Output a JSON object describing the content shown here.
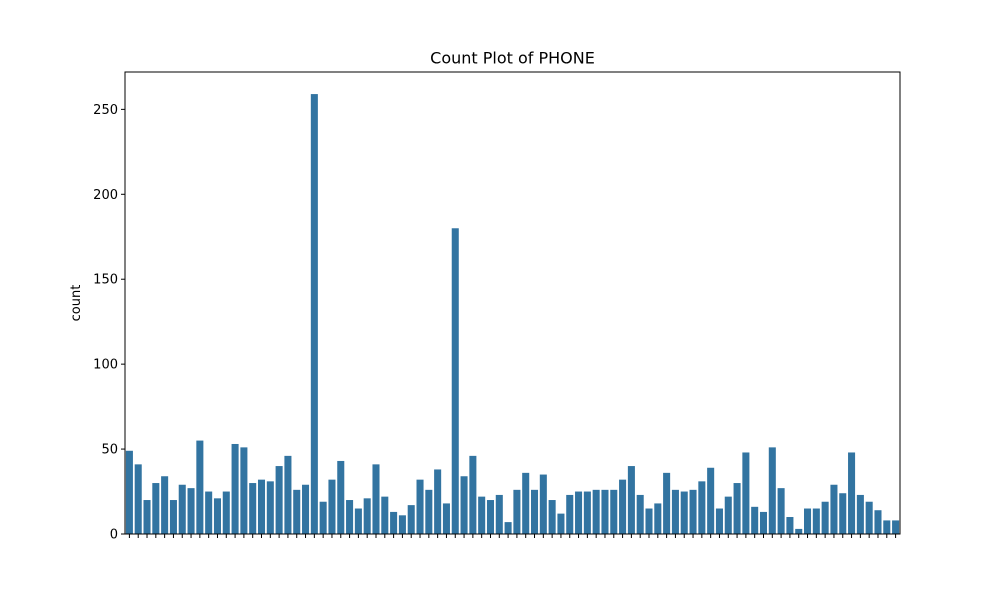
{
  "chart_data": {
    "type": "bar",
    "title": "Count Plot of PHONE",
    "xlabel": "",
    "ylabel": "count",
    "ylim": [
      0,
      272
    ],
    "yticks": [
      0,
      50,
      100,
      150,
      200,
      250
    ],
    "bar_color": "#3274a1",
    "grid": false,
    "x_tick_labels_rotated_degrees": 45,
    "x_tick_labels_legible": false,
    "values": [
      49,
      41,
      20,
      30,
      34,
      20,
      29,
      27,
      55,
      25,
      21,
      25,
      53,
      51,
      30,
      32,
      31,
      40,
      46,
      26,
      29,
      259,
      19,
      32,
      43,
      20,
      15,
      21,
      41,
      22,
      13,
      11,
      17,
      32,
      26,
      38,
      18,
      180,
      34,
      46,
      22,
      20,
      23,
      7,
      26,
      36,
      26,
      35,
      20,
      12,
      23,
      25,
      25,
      26,
      26,
      26,
      32,
      40,
      23,
      15,
      18,
      36,
      26,
      25,
      26,
      31,
      39,
      15,
      22,
      30,
      48,
      16,
      13,
      51,
      27,
      10,
      3,
      15,
      15,
      19,
      29,
      24,
      48,
      23,
      19,
      14,
      8,
      8
    ]
  }
}
